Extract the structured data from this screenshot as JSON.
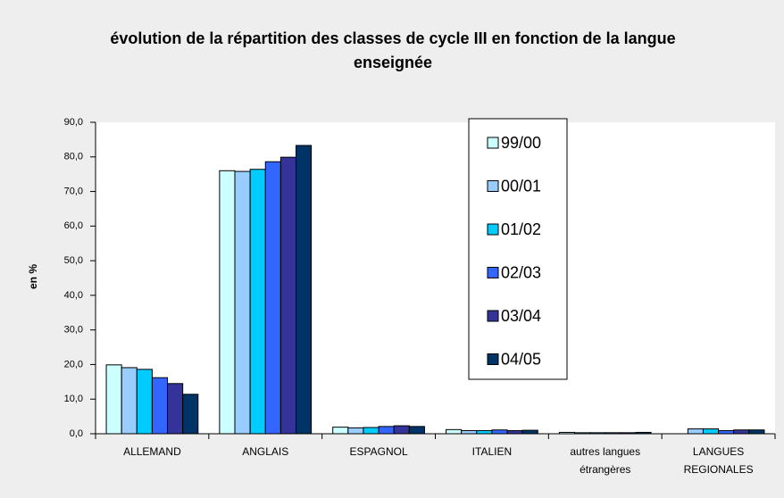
{
  "chart_data": {
    "type": "bar",
    "title": "évolution de la répartition des classes de cycle III en fonction de la langue enseignée",
    "y_label": "en %",
    "categories": [
      "ALLEMAND",
      "ANGLAIS",
      "ESPAGNOL",
      "ITALIEN",
      "autres langues étrangères",
      "LANGUES REGIONALES"
    ],
    "series": [
      {
        "name": "99/00",
        "color": "#ccffff",
        "values": [
          19.9,
          76.0,
          1.9,
          1.2,
          0.4,
          0
        ]
      },
      {
        "name": "00/01",
        "color": "#99ccff",
        "values": [
          19.1,
          75.8,
          1.7,
          0.9,
          0.3,
          1.4
        ]
      },
      {
        "name": "01/02",
        "color": "#00ccff",
        "values": [
          18.6,
          76.4,
          1.8,
          0.9,
          0.3,
          1.4
        ]
      },
      {
        "name": "02/03",
        "color": "#3366ff",
        "values": [
          16.2,
          78.6,
          2.1,
          1.1,
          0.3,
          0.9
        ]
      },
      {
        "name": "03/04",
        "color": "#333399",
        "values": [
          14.5,
          79.9,
          2.3,
          0.9,
          0.3,
          1.1
        ]
      },
      {
        "name": "04/05",
        "color": "#003366",
        "values": [
          11.4,
          83.3,
          2.1,
          1.0,
          0.4,
          1.1
        ]
      }
    ],
    "ylim": [
      0,
      90
    ],
    "yticks": [
      {
        "value": 0,
        "label": "0,0"
      },
      {
        "value": 10,
        "label": "10,0"
      },
      {
        "value": 20,
        "label": "20,0"
      },
      {
        "value": 30,
        "label": "30,0"
      },
      {
        "value": 40,
        "label": "40,0"
      },
      {
        "value": 50,
        "label": "50,0"
      },
      {
        "value": 60,
        "label": "60,0"
      },
      {
        "value": 70,
        "label": "70,0"
      },
      {
        "value": 80,
        "label": "80,0"
      },
      {
        "value": 90,
        "label": "90,0"
      }
    ],
    "grid": false
  }
}
